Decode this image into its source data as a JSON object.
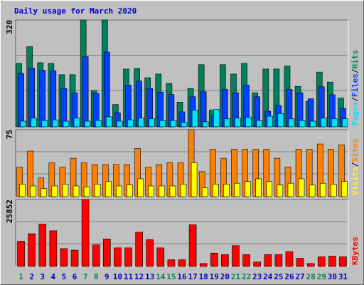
{
  "chart_data": [
    {
      "type": "bar",
      "title": "Daily usage for March 2020",
      "ylim": [
        0,
        320
      ],
      "yticks": [
        320
      ],
      "legend_separator": "/",
      "series": [
        {
          "name": "Hits",
          "color": "#00805C",
          "values": [
            190,
            240,
            192,
            190,
            156,
            156,
            320,
            108,
            320,
            67,
            173,
            175,
            147,
            158,
            130,
            74,
            115,
            186,
            50,
            186,
            158,
            190,
            102,
            173,
            173,
            182,
            121,
            76,
            164,
            134,
            86
          ]
        },
        {
          "name": "Files",
          "color": "#0040FF",
          "values": [
            160,
            176,
            170,
            168,
            115,
            102,
            210,
            100,
            224,
            42,
            125,
            137,
            115,
            104,
            97,
            45,
            90,
            105,
            33,
            112,
            102,
            125,
            90,
            47,
            64,
            112,
            102,
            84,
            120,
            96,
            55
          ]
        },
        {
          "name": "Pages",
          "color": "#00E0FF",
          "values": [
            17,
            26,
            19,
            21,
            17,
            26,
            17,
            19,
            30,
            17,
            21,
            26,
            24,
            19,
            19,
            13,
            50,
            15,
            52,
            24,
            26,
            28,
            19,
            32,
            40,
            24,
            19,
            17,
            26,
            24,
            24
          ]
        }
      ]
    },
    {
      "type": "bar",
      "ylim": [
        0,
        75
      ],
      "yticks": [
        75
      ],
      "legend_separator": "/",
      "series": [
        {
          "name": "Sites",
          "color": "#FF8000",
          "values": [
            33,
            51,
            21,
            38,
            33,
            43,
            38,
            36,
            36,
            36,
            36,
            54,
            33,
            36,
            38,
            38,
            75,
            28,
            53,
            43,
            53,
            53,
            53,
            53,
            43,
            33,
            53,
            53,
            59,
            53,
            58
          ]
        },
        {
          "name": "Visits",
          "color": "#FFFF00",
          "values": [
            14,
            12,
            9,
            12,
            14,
            12,
            11,
            14,
            17,
            12,
            13,
            20,
            12,
            12,
            12,
            14,
            38,
            10,
            14,
            14,
            15,
            17,
            20,
            17,
            13,
            15,
            20,
            13,
            15,
            14,
            17
          ]
        }
      ]
    },
    {
      "type": "bar",
      "ylim": [
        0,
        25852
      ],
      "yticks": [
        25852
      ],
      "categories": [
        "1",
        "2",
        "3",
        "4",
        "5",
        "6",
        "7",
        "8",
        "9",
        "10",
        "11",
        "12",
        "13",
        "14",
        "15",
        "16",
        "17",
        "18",
        "19",
        "20",
        "21",
        "22",
        "23",
        "24",
        "25",
        "26",
        "27",
        "28",
        "29",
        "30",
        "31"
      ],
      "category_color": "#0000CC",
      "highlighted_categories": [
        "1",
        "7",
        "8",
        "14",
        "15",
        "21",
        "22",
        "28",
        "29"
      ],
      "highlight_color": "#00805C",
      "series": [
        {
          "name": "KBytes",
          "color": "#FF0000",
          "values": [
            9765,
            12639,
            16373,
            13788,
            6894,
            6320,
            25852,
            8330,
            10628,
            7181,
            7181,
            13213,
            10341,
            7181,
            2585,
            2585,
            16086,
            1149,
            5170,
            4596,
            8043,
            4596,
            1723,
            4596,
            4596,
            5745,
            3160,
            1149,
            3734,
            4021,
            3734
          ]
        }
      ]
    }
  ]
}
